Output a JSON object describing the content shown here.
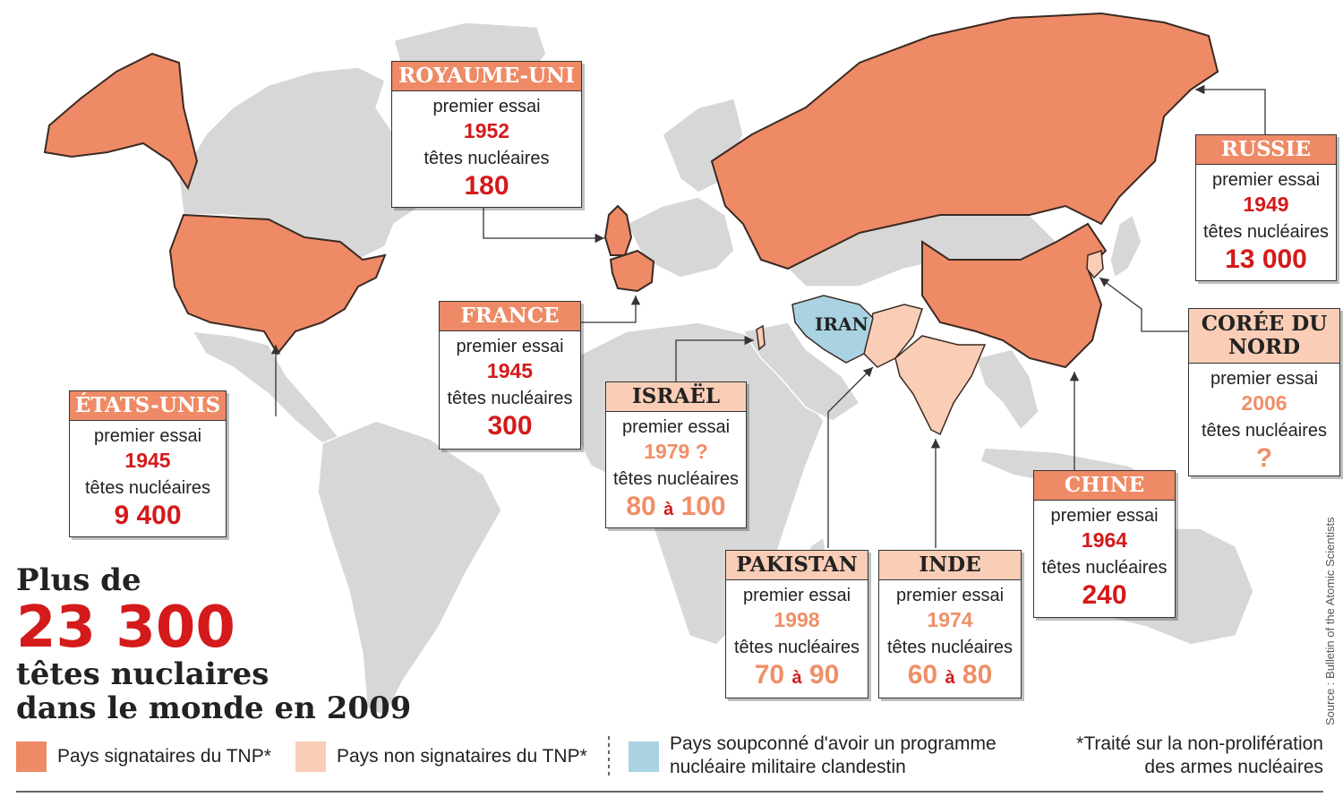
{
  "headline": {
    "line1": "Plus de",
    "big_number": "23 300",
    "line3": "têtes nuclaires",
    "line4": "dans le monde en 2009"
  },
  "colors": {
    "tnp": "#ee8a66",
    "non_tnp": "#f9cdb6",
    "suspected": "#a9d3e2",
    "land": "#d7d7d7",
    "highlight_text": "#d41a1a"
  },
  "labels": {
    "first_test": "premier essai",
    "warheads": "têtes nucléaires"
  },
  "countries": {
    "usa": {
      "name": "ÉTATS-UNIS",
      "year": "1945",
      "warheads": "9 400",
      "status": "tnp"
    },
    "uk": {
      "name": "ROYAUME-UNI",
      "year": "1952",
      "warheads": "180",
      "status": "tnp"
    },
    "france": {
      "name": "FRANCE",
      "year": "1945",
      "warheads": "300",
      "status": "tnp"
    },
    "israel": {
      "name": "ISRAËL",
      "year": "1979 ?",
      "warheads_min": "80",
      "warheads_sep": "à",
      "warheads_max": "100",
      "status": "non"
    },
    "russia": {
      "name": "RUSSIE",
      "year": "1949",
      "warheads": "13 000",
      "status": "tnp"
    },
    "nkorea": {
      "name": "CORÉE DU NORD",
      "year": "2006",
      "warheads": "?",
      "status": "non"
    },
    "china": {
      "name": "CHINE",
      "year": "1964",
      "warheads": "240",
      "status": "tnp"
    },
    "pakistan": {
      "name": "PAKISTAN",
      "year": "1998",
      "warheads_min": "70",
      "warheads_sep": "à",
      "warheads_max": "90",
      "status": "non"
    },
    "india": {
      "name": "INDE",
      "year": "1974",
      "warheads_min": "60",
      "warheads_sep": "à",
      "warheads_max": "80",
      "status": "non"
    },
    "iran_label": "IRAN"
  },
  "legend": {
    "tnp": "Pays signataires du TNP*",
    "non_tnp": "Pays non signataires du TNP*",
    "suspected": "Pays soupconné d'avoir un programme nucléaire militaire clandestin",
    "footnote": "*Traité sur la non-prolifération des armes nucléaires"
  },
  "source": "Source : Bulletin of the Atomic Scientists"
}
